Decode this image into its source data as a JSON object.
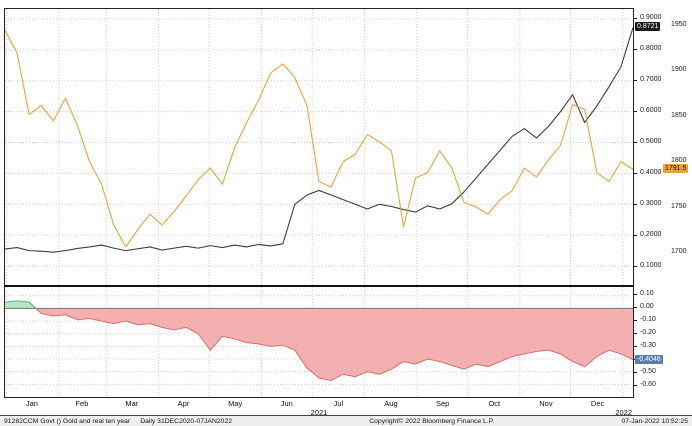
{
  "status_bar": {
    "security": "91282CCM Govt () Gold and real ten year",
    "periodicity": "Daily 31DEC2020-07JAN2022",
    "copyright": "Copyright© 2022 Bloomberg Finance L.P.",
    "timestamp": "07-Jan-2022 10:52:25"
  },
  "colors": {
    "orange_series": "#E8A33D",
    "black_series": "#3d3d3d",
    "neg_fill": "#f4b0b0",
    "neg_stroke": "#d96b6b",
    "pos_fill": "#b5e8c5",
    "pos_stroke": "#53b06a",
    "badge_black_bg": "#1a1a1a",
    "badge_orange_bg": "#E8A33D",
    "badge_blue_bg": "#5a7bb5",
    "grid": "#c8c8c8"
  },
  "badges": {
    "black_last": "0.8721",
    "orange_last": "1791.5",
    "bottom_last": "-0.4046"
  },
  "chart_data": [
    {
      "type": "line",
      "panel": "top",
      "x_axis": {
        "months": [
          "Jan",
          "Feb",
          "Mar",
          "Apr",
          "May",
          "Jun",
          "Jul",
          "Aug",
          "Sep",
          "Oct",
          "Nov",
          "Dec"
        ],
        "year_label": "2021",
        "next_year_label": "2022"
      },
      "axes": {
        "pct": {
          "range": [
            0.1,
            0.9
          ],
          "ticks": [
            {
              "value": 0.9,
              "label": "0.9000"
            },
            {
              "value": 0.8,
              "label": "0.8000"
            },
            {
              "value": 0.7,
              "label": "0.7000"
            },
            {
              "value": 0.6,
              "label": "0.6000"
            },
            {
              "value": 0.5,
              "label": "0.5000"
            },
            {
              "value": 0.4,
              "label": "0.4000"
            },
            {
              "value": 0.3,
              "label": "0.3000"
            },
            {
              "value": 0.2,
              "label": "0.2000"
            },
            {
              "value": 0.1,
              "label": "0.1000"
            }
          ]
        },
        "gold": {
          "range": [
            1700,
            1950
          ],
          "ticks": [
            {
              "value": 1950,
              "label": "1950"
            },
            {
              "value": 1900,
              "label": "1900"
            },
            {
              "value": 1850,
              "label": "1850"
            },
            {
              "value": 1800,
              "label": "1800"
            },
            {
              "value": 1750,
              "label": "1750"
            },
            {
              "value": 1700,
              "label": "1700"
            }
          ]
        }
      },
      "series": [
        {
          "name": "black_line",
          "scale": "pct",
          "color": "#3d3d3d",
          "last_value": 0.8721,
          "values": [
            0.155,
            0.16,
            0.15,
            0.148,
            0.145,
            0.15,
            0.157,
            0.162,
            0.168,
            0.158,
            0.15,
            0.156,
            0.162,
            0.152,
            0.158,
            0.164,
            0.158,
            0.166,
            0.16,
            0.168,
            0.162,
            0.17,
            0.165,
            0.172,
            0.3,
            0.33,
            0.345,
            0.33,
            0.315,
            0.3,
            0.285,
            0.3,
            0.293,
            0.283,
            0.275,
            0.295,
            0.285,
            0.302,
            0.34,
            0.385,
            0.43,
            0.475,
            0.52,
            0.545,
            0.515,
            0.552,
            0.6,
            0.655,
            0.565,
            0.618,
            0.68,
            0.745,
            0.8721
          ]
        },
        {
          "name": "gold_line",
          "scale": "gold",
          "color": "#E8A33D",
          "last_value": 1791.5,
          "values": [
            1945,
            1920,
            1852,
            1862,
            1845,
            1870,
            1840,
            1800,
            1775,
            1730,
            1706,
            1725,
            1742,
            1730,
            1745,
            1762,
            1780,
            1793,
            1775,
            1815,
            1843,
            1868,
            1898,
            1908,
            1893,
            1862,
            1778,
            1772,
            1800,
            1808,
            1830,
            1822,
            1812,
            1728,
            1782,
            1788,
            1812,
            1793,
            1755,
            1750,
            1742,
            1758,
            1768,
            1793,
            1783,
            1802,
            1818,
            1863,
            1858,
            1788,
            1778,
            1800,
            1791.5
          ]
        }
      ]
    },
    {
      "type": "area",
      "panel": "bottom",
      "axis": {
        "range": [
          -0.6,
          0.1
        ],
        "ticks": [
          {
            "value": 0.1,
            "label": "0.10"
          },
          {
            "value": 0.0,
            "label": "0.00"
          },
          {
            "value": -0.1,
            "label": "-0.10"
          },
          {
            "value": -0.2,
            "label": "-0.20"
          },
          {
            "value": -0.3,
            "label": "-0.30"
          },
          {
            "value": -0.4,
            "label": "-0.40"
          },
          {
            "value": -0.5,
            "label": "-0.50"
          },
          {
            "value": -0.6,
            "label": "-0.60"
          }
        ]
      },
      "series": [
        {
          "name": "spread_area",
          "last_value": -0.4046,
          "values": [
            0.05,
            0.06,
            0.05,
            -0.04,
            -0.06,
            -0.05,
            -0.09,
            -0.08,
            -0.1,
            -0.12,
            -0.1,
            -0.13,
            -0.12,
            -0.15,
            -0.17,
            -0.15,
            -0.2,
            -0.33,
            -0.22,
            -0.24,
            -0.27,
            -0.28,
            -0.3,
            -0.29,
            -0.33,
            -0.47,
            -0.55,
            -0.57,
            -0.52,
            -0.54,
            -0.5,
            -0.52,
            -0.48,
            -0.42,
            -0.44,
            -0.4,
            -0.42,
            -0.45,
            -0.48,
            -0.44,
            -0.46,
            -0.42,
            -0.38,
            -0.36,
            -0.34,
            -0.33,
            -0.36,
            -0.42,
            -0.46,
            -0.38,
            -0.33,
            -0.36,
            -0.4046
          ]
        }
      ]
    }
  ]
}
